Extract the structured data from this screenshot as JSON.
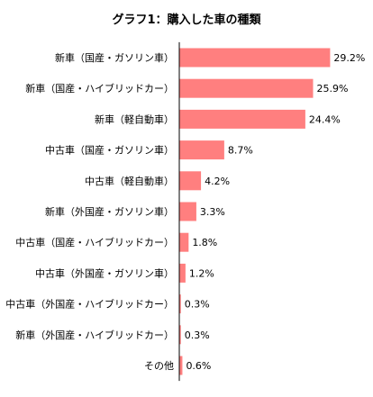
{
  "chart_data": {
    "type": "bar",
    "orientation": "horizontal",
    "title": "グラフ1：購入した車の種類",
    "categories": [
      "新車（国産・ガソリン車）",
      "新車（国産・ハイブリッドカー）",
      "新車（軽自動車）",
      "中古車（国産・ガソリン車）",
      "中古車（軽自動車）",
      "新車（外国産・ガソリン車）",
      "中古車（国産・ハイブリッドカー）",
      "中古車（外国産・ガソリン車）",
      "中古車（外国産・ハイブリッドカー）",
      "新車（外国産・ハイブリッドカー）",
      "その他"
    ],
    "values": [
      29.2,
      25.9,
      24.4,
      8.7,
      4.2,
      3.3,
      1.8,
      1.2,
      0.3,
      0.3,
      0.6
    ],
    "value_labels": [
      "29.2%",
      "25.9%",
      "24.4%",
      "8.7%",
      "4.2%",
      "3.3%",
      "1.8%",
      "1.2%",
      "0.3%",
      "0.3%",
      "0.6%"
    ],
    "unit": "%",
    "xlabel": "",
    "ylabel": "",
    "xlim": [
      0,
      30
    ],
    "grid": false,
    "legend": "none",
    "colors": {
      "bar": "#ff7f7f",
      "axis": "#000000",
      "text": "#000000"
    }
  }
}
